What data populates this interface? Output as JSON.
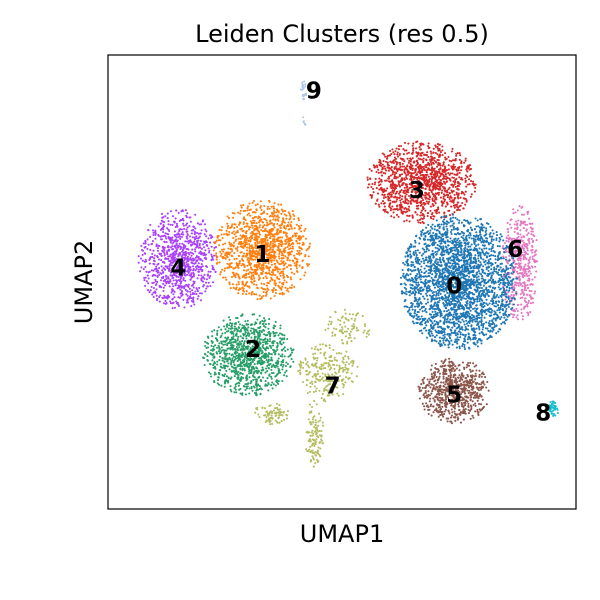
{
  "chart_data": {
    "type": "scatter",
    "title": "Leiden Clusters (res 0.5)",
    "xlabel": "UMAP1",
    "ylabel": "UMAP2",
    "xlim": [
      0,
      100
    ],
    "ylim": [
      0,
      100
    ],
    "x_ticks": false,
    "y_ticks": false,
    "grid": false,
    "legend": "on data",
    "clusters": [
      {
        "label": "0",
        "color": "#1f77b4",
        "label_pos": [
          74,
          49
        ]
      },
      {
        "label": "1",
        "color": "#ff7f0e",
        "label_pos": [
          33,
          56
        ]
      },
      {
        "label": "2",
        "color": "#279e68",
        "label_pos": [
          31,
          35
        ]
      },
      {
        "label": "3",
        "color": "#d62728",
        "label_pos": [
          66,
          70
        ]
      },
      {
        "label": "4",
        "color": "#aa40fc",
        "label_pos": [
          15,
          53
        ]
      },
      {
        "label": "5",
        "color": "#8c564b",
        "label_pos": [
          74,
          25
        ]
      },
      {
        "label": "6",
        "color": "#e377c2",
        "label_pos": [
          87,
          57
        ]
      },
      {
        "label": "7",
        "color": "#b5bd61",
        "label_pos": [
          48,
          27
        ]
      },
      {
        "label": "8",
        "color": "#17becf",
        "label_pos": [
          93,
          21
        ]
      },
      {
        "label": "9",
        "color": "#aec7e8",
        "label_pos": [
          44,
          92
        ]
      }
    ]
  }
}
